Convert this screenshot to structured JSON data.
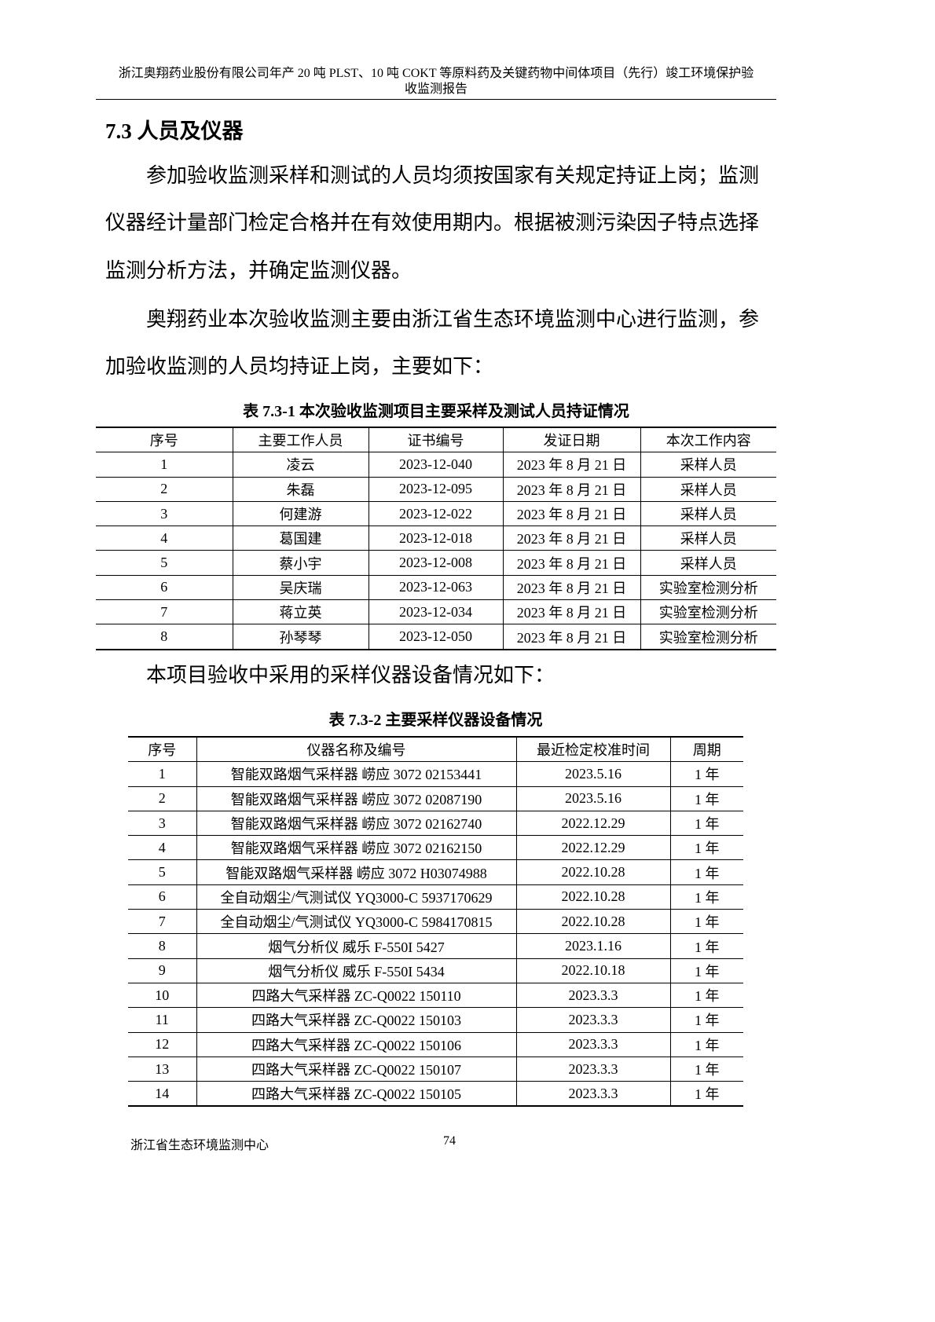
{
  "header": {
    "line1": "浙江奥翔药业股份有限公司年产 20 吨 PLST、10 吨 COKT 等原料药及关键药物中间体项目（先行）竣工环境保护验",
    "line2": "收监测报告"
  },
  "section_title": "7.3  人员及仪器",
  "paragraphs": [
    "参加验收监测采样和测试的人员均须按国家有关规定持证上岗；监测",
    "仪器经计量部门检定合格并在有效使用期内。根据被测污染因子特点选择",
    "监测分析方法，并确定监测仪器。",
    "奥翔药业本次验收监测主要由浙江省生态环境监测中心进行监测，参",
    "加验收监测的人员均持证上岗，主要如下："
  ],
  "table1": {
    "caption": "表 7.3-1  本次验收监测项目主要采样及测试人员持证情况",
    "headers": [
      "序号",
      "主要工作人员",
      "证书编号",
      "发证日期",
      "本次工作内容"
    ],
    "rows": [
      [
        "1",
        "凌云",
        "2023-12-040",
        "2023 年 8 月 21 日",
        "采样人员"
      ],
      [
        "2",
        "朱磊",
        "2023-12-095",
        "2023 年 8 月 21 日",
        "采样人员"
      ],
      [
        "3",
        "何建游",
        "2023-12-022",
        "2023 年 8 月 21 日",
        "采样人员"
      ],
      [
        "4",
        "葛国建",
        "2023-12-018",
        "2023 年 8 月 21 日",
        "采样人员"
      ],
      [
        "5",
        "蔡小宇",
        "2023-12-008",
        "2023 年 8 月 21 日",
        "采样人员"
      ],
      [
        "6",
        "吴庆瑞",
        "2023-12-063",
        "2023 年 8 月 21 日",
        "实验室检测分析"
      ],
      [
        "7",
        "蒋立英",
        "2023-12-034",
        "2023 年 8 月 21 日",
        "实验室检测分析"
      ],
      [
        "8",
        "孙琴琴",
        "2023-12-050",
        "2023 年 8 月 21 日",
        "实验室检测分析"
      ]
    ]
  },
  "intro2": "本项目验收中采用的采样仪器设备情况如下：",
  "table2": {
    "caption": "表 7.3-2  主要采样仪器设备情况",
    "headers": [
      "序号",
      "仪器名称及编号",
      "最近检定校准时间",
      "周期"
    ],
    "rows": [
      [
        "1",
        "智能双路烟气采样器  崂应 3072 02153441",
        "2023.5.16",
        "1 年"
      ],
      [
        "2",
        "智能双路烟气采样器  崂应 3072 02087190",
        "2023.5.16",
        "1 年"
      ],
      [
        "3",
        "智能双路烟气采样器  崂应 3072 02162740",
        "2022.12.29",
        "1 年"
      ],
      [
        "4",
        "智能双路烟气采样器  崂应 3072 02162150",
        "2022.12.29",
        "1 年"
      ],
      [
        "5",
        "智能双路烟气采样器  崂应 3072 H03074988",
        "2022.10.28",
        "1 年"
      ],
      [
        "6",
        "全自动烟尘/气测试仪  YQ3000-C 5937170629",
        "2022.10.28",
        "1 年"
      ],
      [
        "7",
        "全自动烟尘/气测试仪  YQ3000-C 5984170815",
        "2022.10.28",
        "1 年"
      ],
      [
        "8",
        "烟气分析仪  威乐 F-550I 5427",
        "2023.1.16",
        "1 年"
      ],
      [
        "9",
        "烟气分析仪  威乐 F-550I 5434",
        "2022.10.18",
        "1 年"
      ],
      [
        "10",
        "四路大气采样器  ZC-Q0022 150110",
        "2023.3.3",
        "1 年"
      ],
      [
        "11",
        "四路大气采样器  ZC-Q0022 150103",
        "2023.3.3",
        "1 年"
      ],
      [
        "12",
        "四路大气采样器  ZC-Q0022 150106",
        "2023.3.3",
        "1 年"
      ],
      [
        "13",
        "四路大气采样器  ZC-Q0022 150107",
        "2023.3.3",
        "1 年"
      ],
      [
        "14",
        "四路大气采样器  ZC-Q0022 150105",
        "2023.3.3",
        "1 年"
      ]
    ]
  },
  "footer": {
    "org": "浙江省生态环境监测中心",
    "page": "74"
  }
}
